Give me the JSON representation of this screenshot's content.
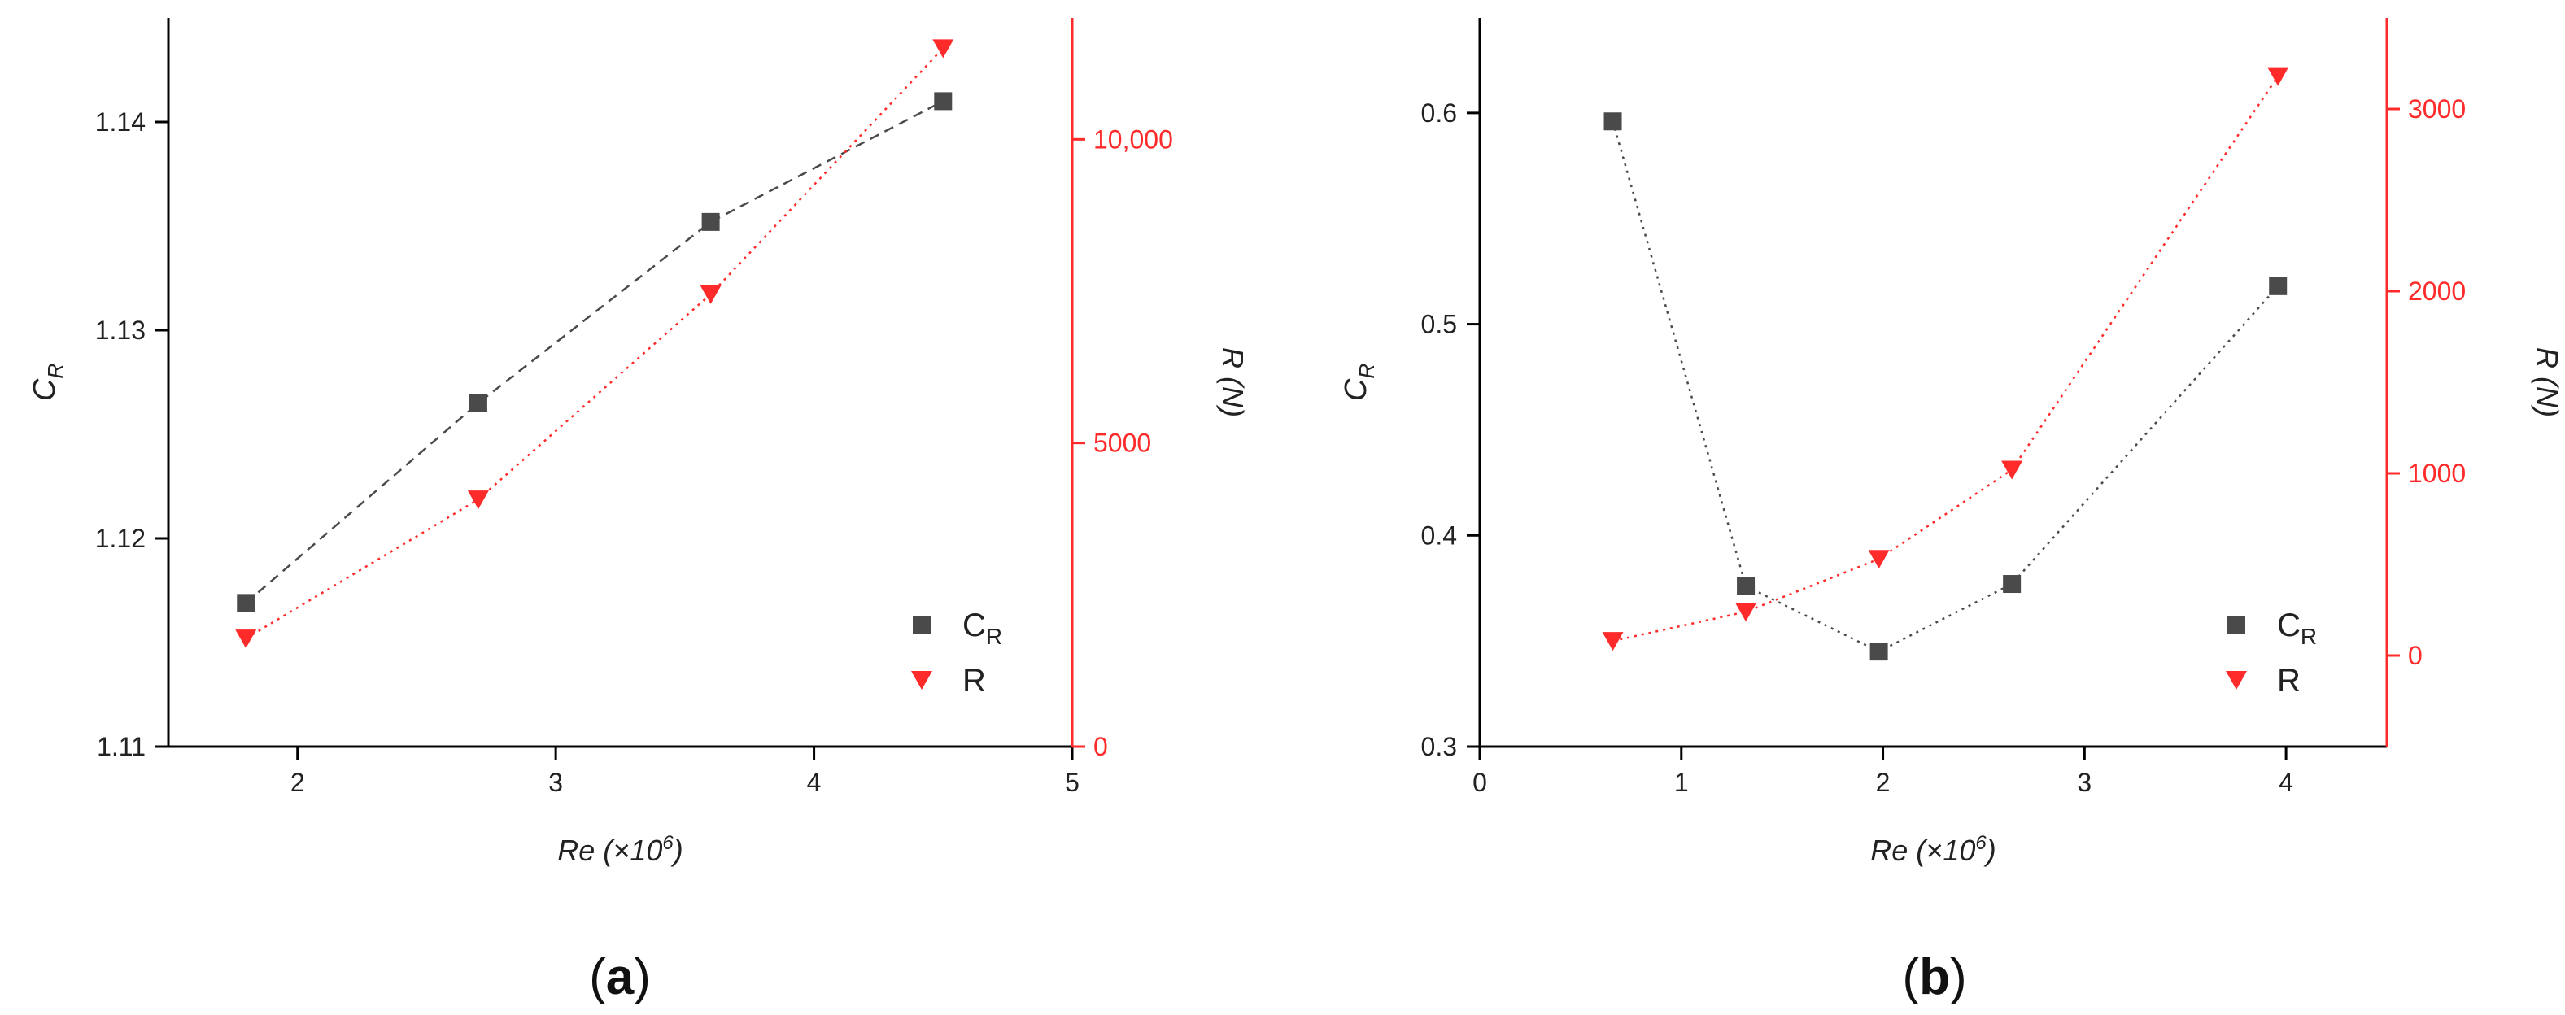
{
  "colors": {
    "left_axis": "#000000",
    "right_axis": "#ff2a2a",
    "series_cr": "#4a4a4a",
    "series_r": "#ff2a2a"
  },
  "chart_data": [
    {
      "type": "scatter",
      "panel_label": "a",
      "xlabel": "Re (×10",
      "xlabel_sup": "6",
      "ylabel_main": "C",
      "ylabel_sub": "R",
      "y2label": "R (N)",
      "xlim": [
        1.5,
        5
      ],
      "ylim": [
        1.11,
        1.145
      ],
      "y2lim": [
        0,
        12000
      ],
      "xticks": [
        2,
        3,
        4,
        5
      ],
      "xtick_labels": [
        "2",
        "3",
        "4",
        "5"
      ],
      "yticks": [
        1.11,
        1.12,
        1.13,
        1.14
      ],
      "ytick_labels": [
        "1.11",
        "1.12",
        "1.13",
        "1.14"
      ],
      "y2ticks": [
        0,
        5000,
        10000
      ],
      "y2tick_labels": [
        "0",
        "5000",
        "10,000"
      ],
      "legend_position": "bottom-right",
      "series": [
        {
          "name": "C",
          "name_sub": "R",
          "axis": "left",
          "marker": "square",
          "line": "dashed",
          "x": [
            1.8,
            2.7,
            3.6,
            4.5
          ],
          "y": [
            1.1169,
            1.1265,
            1.1352,
            1.141
          ]
        },
        {
          "name": "R",
          "axis": "right",
          "marker": "triangle-down",
          "line": "dotted",
          "x": [
            1.8,
            2.7,
            3.6,
            4.5
          ],
          "y": [
            1780,
            4070,
            7450,
            11500
          ]
        }
      ]
    },
    {
      "type": "scatter",
      "panel_label": "b",
      "xlabel": "Re (×10",
      "xlabel_sup": "6",
      "ylabel_main": "C",
      "ylabel_sub": "R",
      "y2label": "R (N)",
      "xlim": [
        0,
        4.5
      ],
      "ylim": [
        0.3,
        0.645
      ],
      "y2lim": [
        -500,
        3500
      ],
      "xticks": [
        0,
        1,
        2,
        3,
        4
      ],
      "xtick_labels": [
        "0",
        "1",
        "2",
        "3",
        "4"
      ],
      "yticks": [
        0.3,
        0.4,
        0.5,
        0.6
      ],
      "ytick_labels": [
        "0.3",
        "0.4",
        "0.5",
        "0.6"
      ],
      "y2ticks": [
        0,
        1000,
        2000,
        3000
      ],
      "y2tick_labels": [
        "0",
        "1000",
        "2000",
        "3000"
      ],
      "legend_position": "bottom-right",
      "series": [
        {
          "name": "C",
          "name_sub": "R",
          "axis": "left",
          "marker": "square",
          "line": "dotted",
          "x": [
            0.66,
            1.32,
            1.98,
            2.64,
            3.96
          ],
          "y": [
            0.596,
            0.376,
            0.345,
            0.377,
            0.518
          ]
        },
        {
          "name": "R",
          "axis": "right",
          "marker": "triangle-down",
          "line": "dotted",
          "x": [
            0.66,
            1.32,
            1.98,
            2.64,
            3.96
          ],
          "y": [
            80,
            240,
            530,
            1020,
            3180
          ]
        }
      ]
    }
  ]
}
